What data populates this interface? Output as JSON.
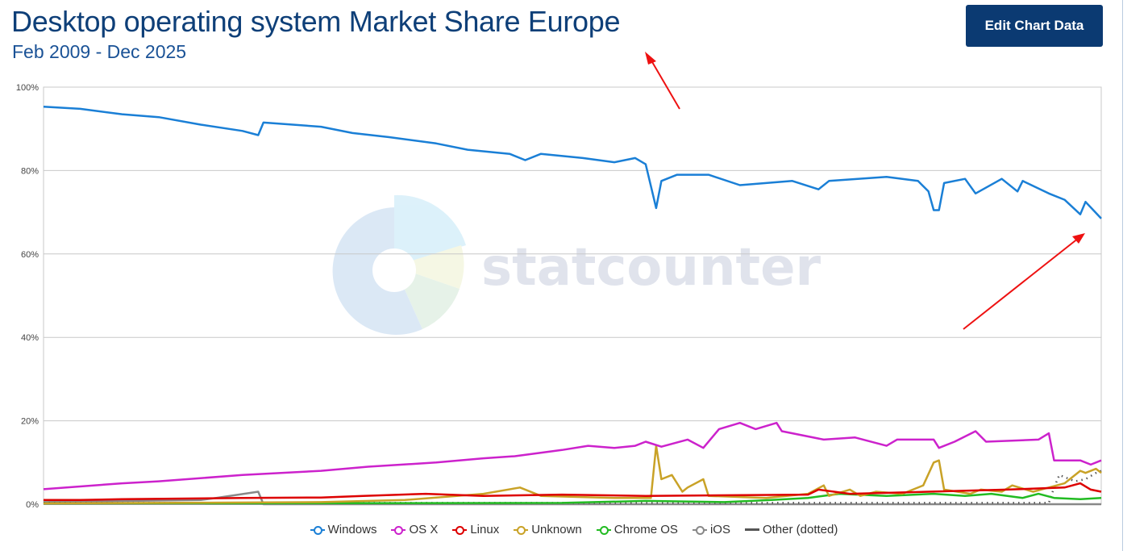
{
  "header": {
    "title": "Desktop operating system Market Share Europe",
    "subtitle": "Feb 2009 - Dec 2025",
    "edit_button": "Edit Chart Data"
  },
  "watermark": {
    "text": "statcounter"
  },
  "chart_data": {
    "type": "line",
    "title": "Desktop operating system Market Share Europe",
    "subtitle": "Feb 2009 - Dec 2025",
    "x_range": [
      "2009-02",
      "2025-12"
    ],
    "ylim": [
      0,
      100
    ],
    "y_ticks": [
      "0%",
      "20%",
      "40%",
      "60%",
      "80%",
      "100%"
    ],
    "y_tick_values": [
      0,
      20,
      40,
      60,
      80,
      100
    ],
    "grid": true,
    "legend_position": "bottom",
    "series": [
      {
        "name": "Windows",
        "color": "#1a7fd6",
        "style": "solid",
        "points": [
          [
            "2009-02",
            95.3
          ],
          [
            "2009-09",
            94.8
          ],
          [
            "2010-05",
            93.5
          ],
          [
            "2010-12",
            92.8
          ],
          [
            "2011-08",
            91
          ],
          [
            "2012-04",
            89.5
          ],
          [
            "2012-07",
            88.5
          ],
          [
            "2012-08",
            91.5
          ],
          [
            "2013-07",
            90.5
          ],
          [
            "2014-01",
            89
          ],
          [
            "2014-08",
            88
          ],
          [
            "2015-05",
            86.5
          ],
          [
            "2015-11",
            85
          ],
          [
            "2016-07",
            84
          ],
          [
            "2016-10",
            82.5
          ],
          [
            "2017-01",
            84
          ],
          [
            "2017-09",
            83
          ],
          [
            "2018-03",
            82
          ],
          [
            "2018-07",
            83
          ],
          [
            "2018-09",
            81.5
          ],
          [
            "2018-11",
            71
          ],
          [
            "2018-12",
            77.5
          ],
          [
            "2019-03",
            79
          ],
          [
            "2019-09",
            79
          ],
          [
            "2020-03",
            76.5
          ],
          [
            "2021-01",
            77.5
          ],
          [
            "2021-06",
            75.5
          ],
          [
            "2021-08",
            77.5
          ],
          [
            "2022-07",
            78.5
          ],
          [
            "2023-01",
            77.5
          ],
          [
            "2023-03",
            75
          ],
          [
            "2023-04",
            70.5
          ],
          [
            "2023-05",
            70.5
          ],
          [
            "2023-06",
            77
          ],
          [
            "2023-10",
            78
          ],
          [
            "2023-12",
            74.5
          ],
          [
            "2024-05",
            78
          ],
          [
            "2024-08",
            75
          ],
          [
            "2024-09",
            77.5
          ],
          [
            "2025-02",
            74.5
          ],
          [
            "2025-05",
            73
          ],
          [
            "2025-08",
            69.5
          ],
          [
            "2025-09",
            72.5
          ],
          [
            "2025-12",
            68.5
          ]
        ]
      },
      {
        "name": "OS X",
        "color": "#cc22cc",
        "style": "solid",
        "points": [
          [
            "2009-02",
            3.6
          ],
          [
            "2010-05",
            5
          ],
          [
            "2010-12",
            5.5
          ],
          [
            "2012-04",
            7
          ],
          [
            "2013-07",
            8
          ],
          [
            "2014-04",
            9
          ],
          [
            "2015-05",
            10
          ],
          [
            "2016-02",
            11
          ],
          [
            "2016-08",
            11.5
          ],
          [
            "2017-05",
            13
          ],
          [
            "2017-10",
            14
          ],
          [
            "2018-03",
            13.5
          ],
          [
            "2018-07",
            14
          ],
          [
            "2018-09",
            15
          ],
          [
            "2018-12",
            13.8
          ],
          [
            "2019-05",
            15.5
          ],
          [
            "2019-08",
            13.5
          ],
          [
            "2019-11",
            18
          ],
          [
            "2020-03",
            19.5
          ],
          [
            "2020-06",
            18
          ],
          [
            "2020-10",
            19.5
          ],
          [
            "2020-11",
            17.5
          ],
          [
            "2021-07",
            15.5
          ],
          [
            "2022-01",
            16
          ],
          [
            "2022-07",
            14
          ],
          [
            "2022-09",
            15.5
          ],
          [
            "2023-04",
            15.5
          ],
          [
            "2023-05",
            13.5
          ],
          [
            "2023-08",
            15
          ],
          [
            "2023-12",
            17.5
          ],
          [
            "2024-02",
            15
          ],
          [
            "2024-12",
            15.5
          ],
          [
            "2025-02",
            17
          ],
          [
            "2025-03",
            10.5
          ],
          [
            "2025-08",
            10.5
          ],
          [
            "2025-10",
            9.5
          ],
          [
            "2025-12",
            10.5
          ]
        ]
      },
      {
        "name": "Linux",
        "color": "#dd0000",
        "style": "solid",
        "points": [
          [
            "2009-02",
            1
          ],
          [
            "2009-09",
            1
          ],
          [
            "2010-05",
            1.2
          ],
          [
            "2012-04",
            1.5
          ],
          [
            "2013-07",
            1.6
          ],
          [
            "2014-03",
            2
          ],
          [
            "2015-03",
            2.5
          ],
          [
            "2016-02",
            2
          ],
          [
            "2017-05",
            2.3
          ],
          [
            "2018-09",
            2
          ],
          [
            "2021-04",
            2.3
          ],
          [
            "2021-06",
            3.5
          ],
          [
            "2021-12",
            2.5
          ],
          [
            "2023-03",
            3
          ],
          [
            "2024-06",
            3.5
          ],
          [
            "2025-05",
            4
          ],
          [
            "2025-08",
            5
          ],
          [
            "2025-10",
            3.5
          ],
          [
            "2025-12",
            3
          ]
        ]
      },
      {
        "name": "Unknown",
        "color": "#c9a227",
        "style": "solid",
        "points": [
          [
            "2009-02",
            0.2
          ],
          [
            "2013-07",
            0.5
          ],
          [
            "2014-11",
            1
          ],
          [
            "2016-02",
            2.5
          ],
          [
            "2016-09",
            4
          ],
          [
            "2017-01",
            2
          ],
          [
            "2018-03",
            1.5
          ],
          [
            "2018-10",
            1.5
          ],
          [
            "2018-11",
            14
          ],
          [
            "2018-12",
            6
          ],
          [
            "2019-02",
            7
          ],
          [
            "2019-04",
            3
          ],
          [
            "2019-05",
            4
          ],
          [
            "2019-08",
            6
          ],
          [
            "2019-09",
            2
          ],
          [
            "2020-08",
            1.5
          ],
          [
            "2021-04",
            2.5
          ],
          [
            "2021-07",
            4.5
          ],
          [
            "2021-08",
            2
          ],
          [
            "2021-12",
            3.5
          ],
          [
            "2022-02",
            2
          ],
          [
            "2022-05",
            3
          ],
          [
            "2022-10",
            2.5
          ],
          [
            "2023-02",
            4.5
          ],
          [
            "2023-04",
            10
          ],
          [
            "2023-05",
            10.5
          ],
          [
            "2023-06",
            3.5
          ],
          [
            "2023-11",
            2.5
          ],
          [
            "2024-01",
            3.5
          ],
          [
            "2024-05",
            3
          ],
          [
            "2024-07",
            4.5
          ],
          [
            "2024-11",
            3
          ],
          [
            "2025-02",
            4
          ],
          [
            "2025-05",
            5
          ],
          [
            "2025-08",
            8
          ],
          [
            "2025-09",
            7.5
          ],
          [
            "2025-11",
            8.5
          ],
          [
            "2025-12",
            7.5
          ]
        ]
      },
      {
        "name": "Chrome OS",
        "color": "#22bb22",
        "style": "solid",
        "points": [
          [
            "2009-02",
            0.2
          ],
          [
            "2017-05",
            0.3
          ],
          [
            "2018-09",
            0.8
          ],
          [
            "2019-12",
            0.5
          ],
          [
            "2020-09",
            1
          ],
          [
            "2021-04",
            1.5
          ],
          [
            "2021-10",
            2.5
          ],
          [
            "2022-07",
            2
          ],
          [
            "2023-04",
            2.5
          ],
          [
            "2023-10",
            2
          ],
          [
            "2024-03",
            2.5
          ],
          [
            "2024-09",
            1.5
          ],
          [
            "2024-12",
            2.5
          ],
          [
            "2025-03",
            1.5
          ],
          [
            "2025-08",
            1.2
          ],
          [
            "2025-12",
            1.5
          ]
        ]
      },
      {
        "name": "iOS",
        "color": "#888888",
        "style": "solid",
        "points": [
          [
            "2009-02",
            0.5
          ],
          [
            "2011-08",
            1
          ],
          [
            "2011-11",
            1.5
          ],
          [
            "2012-07",
            3
          ],
          [
            "2012-08",
            0
          ],
          [
            "2025-12",
            0
          ]
        ]
      },
      {
        "name": "Other (dotted)",
        "color": "#555555",
        "style": "dotted",
        "points": [
          [
            "2009-02",
            0.3
          ],
          [
            "2025-02",
            0.3
          ],
          [
            "2025-03",
            4
          ],
          [
            "2025-04",
            7
          ],
          [
            "2025-05",
            6.5
          ],
          [
            "2025-07",
            5.5
          ],
          [
            "2025-09",
            6
          ],
          [
            "2025-11",
            7.5
          ],
          [
            "2025-12",
            8
          ]
        ]
      }
    ]
  }
}
